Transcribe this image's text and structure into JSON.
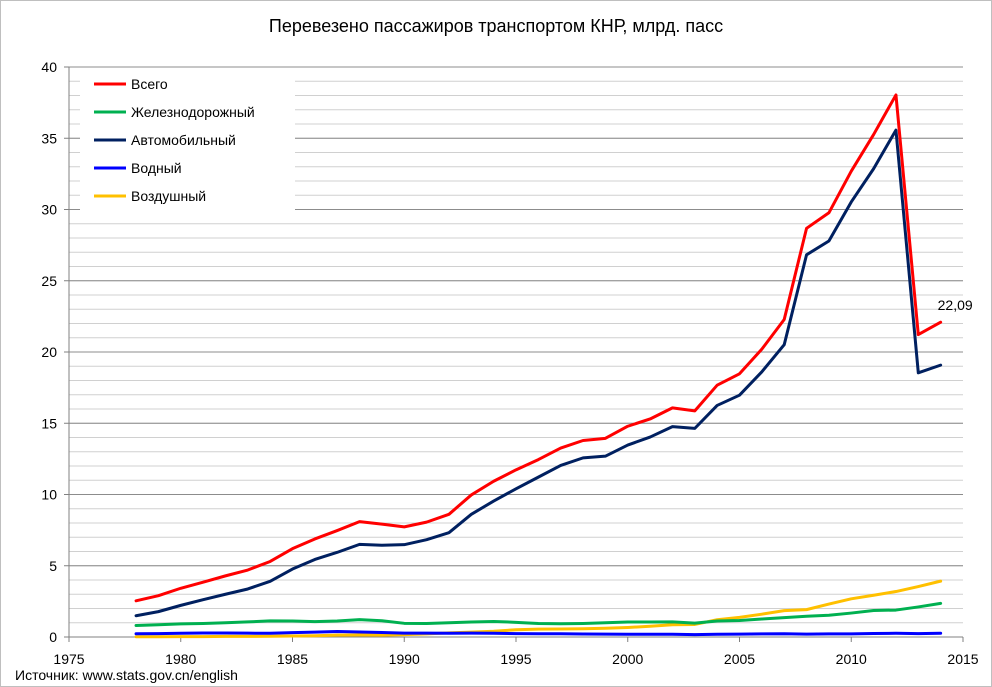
{
  "title": "Перевезено пассажиров транспортом КНР, млрд. пасс",
  "source": "Источник: www.stats.gov.cn/english",
  "chart_data": {
    "type": "line",
    "title": "Перевезено пассажиров транспортом КНР, млрд. пасс",
    "xlabel": "",
    "ylabel": "",
    "xlim": [
      1975,
      2015
    ],
    "ylim": [
      0,
      40
    ],
    "x_ticks": [
      1975,
      1980,
      1985,
      1990,
      1995,
      2000,
      2005,
      2010,
      2015
    ],
    "y_ticks": [
      0,
      5,
      10,
      15,
      20,
      25,
      30,
      35,
      40
    ],
    "grid": true,
    "legend_position": "top-left",
    "x": [
      1978,
      1979,
      1980,
      1981,
      1982,
      1983,
      1984,
      1985,
      1986,
      1987,
      1988,
      1989,
      1990,
      1991,
      1992,
      1993,
      1994,
      1995,
      1996,
      1997,
      1998,
      1999,
      2000,
      2001,
      2002,
      2003,
      2004,
      2005,
      2006,
      2007,
      2008,
      2009,
      2010,
      2011,
      2012,
      2013,
      2014
    ],
    "series": [
      {
        "name": "Всего",
        "color": "#ff0000",
        "values": [
          2.54,
          2.9,
          3.42,
          3.85,
          4.29,
          4.7,
          5.3,
          6.2,
          6.88,
          7.47,
          8.1,
          7.92,
          7.73,
          8.06,
          8.61,
          9.97,
          10.93,
          11.73,
          12.45,
          13.26,
          13.79,
          13.94,
          14.79,
          15.3,
          16.08,
          15.87,
          17.67,
          18.47,
          20.2,
          22.28,
          28.68,
          29.77,
          32.69,
          35.26,
          38.04,
          21.22,
          22.09
        ]
      },
      {
        "name": "Железнодорожный",
        "color": "#00b050",
        "values": [
          0.81,
          0.86,
          0.92,
          0.95,
          1.0,
          1.06,
          1.13,
          1.12,
          1.08,
          1.12,
          1.22,
          1.14,
          0.96,
          0.95,
          1.0,
          1.05,
          1.09,
          1.03,
          0.95,
          0.93,
          0.95,
          1.0,
          1.05,
          1.05,
          1.06,
          0.97,
          1.12,
          1.16,
          1.26,
          1.36,
          1.46,
          1.53,
          1.68,
          1.86,
          1.89,
          2.11,
          2.36
        ]
      },
      {
        "name": "Автомобильный",
        "color": "#002060",
        "values": [
          1.49,
          1.78,
          2.22,
          2.62,
          3.0,
          3.37,
          3.91,
          4.77,
          5.44,
          5.94,
          6.5,
          6.44,
          6.48,
          6.83,
          7.32,
          8.61,
          9.54,
          10.4,
          11.22,
          12.04,
          12.57,
          12.69,
          13.47,
          14.03,
          14.76,
          14.64,
          16.25,
          16.97,
          18.61,
          20.51,
          26.82,
          27.79,
          30.53,
          32.86,
          35.57,
          18.54,
          19.08
        ]
      },
      {
        "name": "Водный",
        "color": "#0000ff",
        "values": [
          0.23,
          0.24,
          0.26,
          0.28,
          0.28,
          0.27,
          0.26,
          0.31,
          0.34,
          0.39,
          0.35,
          0.32,
          0.27,
          0.27,
          0.26,
          0.27,
          0.26,
          0.24,
          0.23,
          0.23,
          0.21,
          0.2,
          0.19,
          0.19,
          0.19,
          0.17,
          0.19,
          0.2,
          0.22,
          0.23,
          0.2,
          0.22,
          0.22,
          0.25,
          0.26,
          0.24,
          0.26
        ]
      },
      {
        "name": "Воздушный",
        "color": "#ffc000",
        "values": [
          0.02,
          0.02,
          0.03,
          0.03,
          0.04,
          0.04,
          0.05,
          0.07,
          0.09,
          0.13,
          0.14,
          0.13,
          0.17,
          0.22,
          0.29,
          0.34,
          0.4,
          0.51,
          0.55,
          0.56,
          0.58,
          0.61,
          0.67,
          0.75,
          0.86,
          0.88,
          1.21,
          1.38,
          1.6,
          1.85,
          1.92,
          2.31,
          2.68,
          2.93,
          3.19,
          3.54,
          3.92
        ]
      }
    ],
    "annotations": [
      {
        "text": "22,09",
        "x": 2014,
        "y": 22.09,
        "series": "Всего"
      }
    ]
  }
}
